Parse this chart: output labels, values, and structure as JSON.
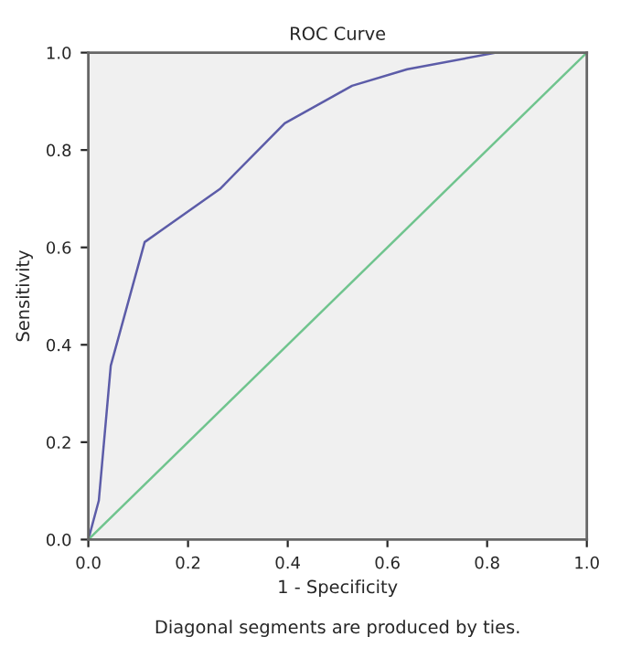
{
  "chart_data": {
    "type": "line",
    "title": "ROC Curve",
    "xlabel": "1 - Specificity",
    "ylabel": "Sensitivity",
    "annotations": [
      "Diagonal segments are produced by ties."
    ],
    "series": [
      {
        "color": "#5c5ca8",
        "x": [
          0,
          0.021,
          0.045,
          0.113,
          0.264,
          0.394,
          0.529,
          0.64,
          0.818,
          1
        ],
        "values": [
          0,
          0.08,
          0.357,
          0.611,
          0.72,
          0.855,
          0.932,
          0.966,
          1,
          1
        ]
      },
      {
        "color": "#70c48e",
        "x": [
          0,
          1
        ],
        "values": [
          0,
          1
        ]
      }
    ],
    "xlim": [
      0,
      1
    ],
    "ylim": [
      0,
      1
    ],
    "xticks": [
      {
        "value": 0,
        "label": "0.0"
      },
      {
        "value": 0.2,
        "label": "0.2"
      },
      {
        "value": 0.4,
        "label": "0.4"
      },
      {
        "value": 0.6,
        "label": "0.6"
      },
      {
        "value": 0.8,
        "label": "0.8"
      },
      {
        "value": 1,
        "label": "1.0"
      }
    ],
    "yticks": [
      {
        "value": 0,
        "label": "0.0"
      },
      {
        "value": 0.2,
        "label": "0.2"
      },
      {
        "value": 0.4,
        "label": "0.4"
      },
      {
        "value": 0.6,
        "label": "0.6"
      },
      {
        "value": 0.8,
        "label": "0.8"
      },
      {
        "value": 1,
        "label": "1.0"
      }
    ],
    "grid": false
  }
}
